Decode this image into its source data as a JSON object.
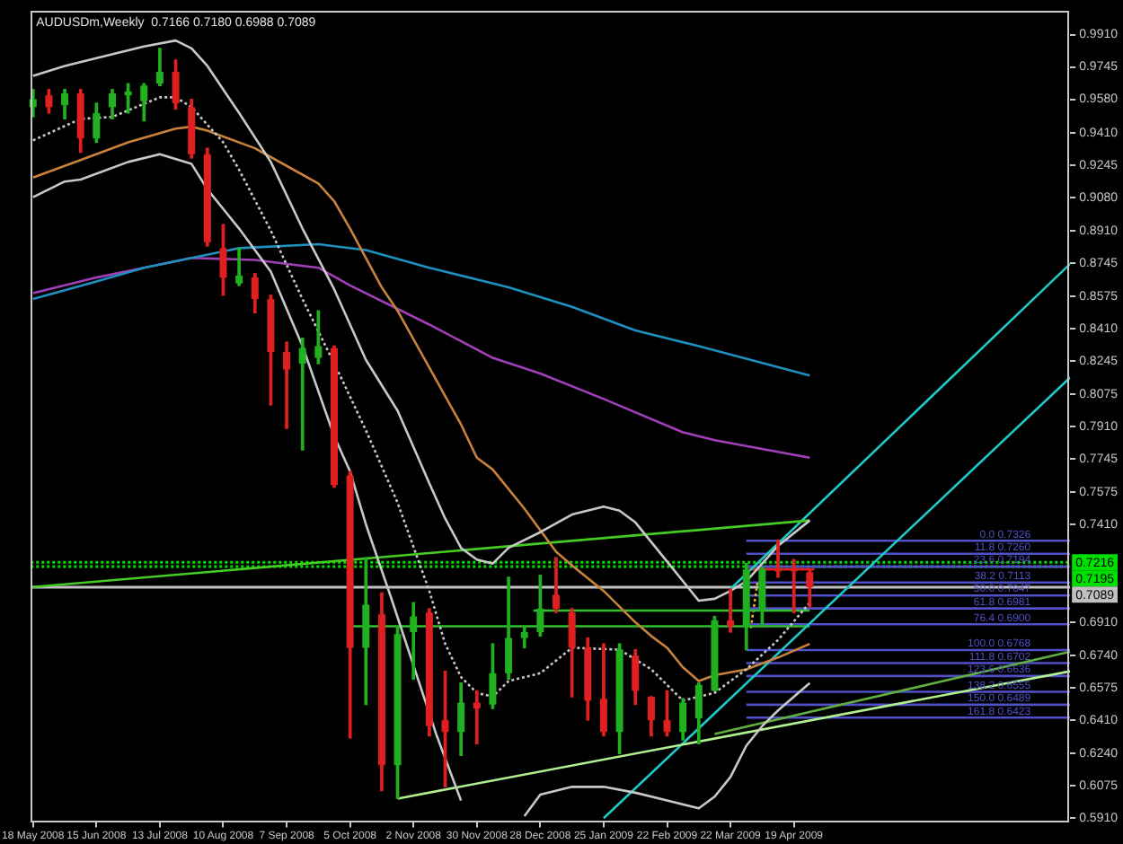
{
  "chart_data": {
    "type": "candlestick",
    "title": "AUDUSDm,Weekly  0.7166 0.7180 0.6988 0.7089",
    "x": [
      "2008-05-18",
      "2008-05-25",
      "2008-06-01",
      "2008-06-08",
      "2008-06-15",
      "2008-06-22",
      "2008-06-29",
      "2008-07-06",
      "2008-07-13",
      "2008-07-20",
      "2008-07-27",
      "2008-08-03",
      "2008-08-10",
      "2008-08-17",
      "2008-08-24",
      "2008-08-31",
      "2008-09-07",
      "2008-09-14",
      "2008-09-21",
      "2008-09-28",
      "2008-10-05",
      "2008-10-12",
      "2008-10-19",
      "2008-10-26",
      "2008-11-02",
      "2008-11-09",
      "2008-11-16",
      "2008-11-23",
      "2008-11-30",
      "2008-12-07",
      "2008-12-14",
      "2008-12-21",
      "2008-12-28",
      "2009-01-04",
      "2009-01-11",
      "2009-01-18",
      "2009-01-25",
      "2009-02-01",
      "2009-02-08",
      "2009-02-15",
      "2009-02-22",
      "2009-03-01",
      "2009-03-08",
      "2009-03-15",
      "2009-03-22",
      "2009-03-29",
      "2009-04-05",
      "2009-04-12",
      "2009-04-19",
      "2009-04-26"
    ],
    "ohlc": [
      [
        0.954,
        0.963,
        0.949,
        0.958
      ],
      [
        0.96,
        0.963,
        0.951,
        0.954
      ],
      [
        0.955,
        0.963,
        0.948,
        0.961
      ],
      [
        0.961,
        0.963,
        0.931,
        0.938
      ],
      [
        0.938,
        0.956,
        0.936,
        0.951
      ],
      [
        0.954,
        0.963,
        0.948,
        0.961
      ],
      [
        0.96,
        0.966,
        0.951,
        0.962
      ],
      [
        0.957,
        0.966,
        0.947,
        0.965
      ],
      [
        0.966,
        0.984,
        0.965,
        0.972
      ],
      [
        0.972,
        0.978,
        0.953,
        0.956
      ],
      [
        0.954,
        0.958,
        0.928,
        0.93
      ],
      [
        0.93,
        0.933,
        0.883,
        0.885
      ],
      [
        0.882,
        0.894,
        0.858,
        0.867
      ],
      [
        0.864,
        0.882,
        0.863,
        0.868
      ],
      [
        0.867,
        0.869,
        0.849,
        0.856
      ],
      [
        0.856,
        0.858,
        0.802,
        0.829
      ],
      [
        0.829,
        0.834,
        0.79,
        0.82
      ],
      [
        0.823,
        0.836,
        0.779,
        0.831
      ],
      [
        0.826,
        0.85,
        0.823,
        0.832
      ],
      [
        0.831,
        0.832,
        0.76,
        0.761
      ],
      [
        0.766,
        0.768,
        0.632,
        0.678
      ],
      [
        0.678,
        0.724,
        0.649,
        0.7
      ],
      [
        0.695,
        0.706,
        0.605,
        0.618
      ],
      [
        0.618,
        0.689,
        0.601,
        0.685
      ],
      [
        0.686,
        0.701,
        0.662,
        0.694
      ],
      [
        0.696,
        0.698,
        0.633,
        0.638
      ],
      [
        0.641,
        0.666,
        0.607,
        0.635
      ],
      [
        0.635,
        0.66,
        0.623,
        0.65
      ],
      [
        0.65,
        0.656,
        0.629,
        0.647
      ],
      [
        0.649,
        0.68,
        0.647,
        0.665
      ],
      [
        0.665,
        0.714,
        0.662,
        0.683
      ],
      [
        0.683,
        0.689,
        0.678,
        0.686
      ],
      [
        0.686,
        0.715,
        0.684,
        0.698
      ],
      [
        0.705,
        0.724,
        0.696,
        0.698
      ],
      [
        0.696,
        0.698,
        0.653,
        0.678
      ],
      [
        0.678,
        0.683,
        0.641,
        0.651
      ],
      [
        0.652,
        0.68,
        0.633,
        0.635
      ],
      [
        0.635,
        0.68,
        0.624,
        0.677
      ],
      [
        0.674,
        0.677,
        0.649,
        0.656
      ],
      [
        0.653,
        0.653,
        0.633,
        0.641
      ],
      [
        0.641,
        0.656,
        0.633,
        0.635
      ],
      [
        0.635,
        0.652,
        0.631,
        0.65
      ],
      [
        0.642,
        0.66,
        0.629,
        0.659
      ],
      [
        0.656,
        0.694,
        0.656,
        0.692
      ],
      [
        0.692,
        0.708,
        0.686,
        0.689
      ],
      [
        0.689,
        0.721,
        0.677,
        0.718
      ],
      [
        0.697,
        0.719,
        0.689,
        0.718
      ],
      [
        0.718,
        0.733,
        0.714,
        0.717
      ],
      [
        0.718,
        0.723,
        0.696,
        0.717
      ],
      [
        0.7166,
        0.718,
        0.6988,
        0.7089
      ]
    ],
    "colors": [
      "#20b020",
      "#e02020",
      "#20b020",
      "#e02020",
      "#20b020",
      "#20b020",
      "#20b020",
      "#20b020",
      "#20b020",
      "#e02020",
      "#e02020",
      "#e02020",
      "#e02020",
      "#20b020",
      "#e02020",
      "#e02020",
      "#e02020",
      "#20b020",
      "#20b020",
      "#e02020",
      "#e02020",
      "#20b020",
      "#e02020",
      "#20b020",
      "#20b020",
      "#e02020",
      "#e02020",
      "#20b020",
      "#e02020",
      "#20b020",
      "#20b020",
      "#20b020",
      "#20b020",
      "#e02020",
      "#e02020",
      "#e02020",
      "#e02020",
      "#20b020",
      "#e02020",
      "#e02020",
      "#e02020",
      "#20b020",
      "#20b020",
      "#20b020",
      "#e02020",
      "#20b020",
      "#20b020",
      "#e02020",
      "#e02020",
      "#e02020"
    ],
    "xlim": [
      "2008-05-17",
      "2009-08-19"
    ],
    "xticks": [
      {
        "value": "2008-05-18",
        "label": "18 May 2008"
      },
      {
        "value": "2008-06-15",
        "label": "15 Jun 2008"
      },
      {
        "value": "2008-07-13",
        "label": "13 Jul 2008"
      },
      {
        "value": "2008-08-10",
        "label": "10 Aug 2008"
      },
      {
        "value": "2008-09-07",
        "label": "7 Sep 2008"
      },
      {
        "value": "2008-10-05",
        "label": "5 Oct 2008"
      },
      {
        "value": "2008-11-02",
        "label": "2 Nov 2008"
      },
      {
        "value": "2008-11-30",
        "label": "30 Nov 2008"
      },
      {
        "value": "2008-12-28",
        "label": "28 Dec 2008"
      },
      {
        "value": "2009-01-25",
        "label": "25 Jan 2009"
      },
      {
        "value": "2009-02-22",
        "label": "22 Feb 2009"
      },
      {
        "value": "2009-03-22",
        "label": "22 Mar 2009"
      },
      {
        "value": "2009-04-19",
        "label": "19 Apr 2009"
      }
    ],
    "ylim": [
      0.589,
      1.003
    ],
    "yticks": [
      {
        "value": 0.991,
        "label": "0.9910"
      },
      0.9745,
      {
        "value": 0.958,
        "label": "0.9580"
      },
      {
        "value": 0.941,
        "label": "0.9410"
      },
      0.9245,
      {
        "value": 0.908,
        "label": "0.9080"
      },
      {
        "value": 0.891,
        "label": "0.8910"
      },
      0.8745,
      0.8575,
      {
        "value": 0.841,
        "label": "0.8410"
      },
      0.8245,
      0.8075,
      {
        "value": 0.791,
        "label": "0.7910"
      },
      0.7745,
      0.7575,
      {
        "value": 0.741,
        "label": "0.7410"
      },
      {
        "value": 0.691,
        "label": "0.6910"
      },
      {
        "value": 0.674,
        "label": "0.6740"
      },
      0.6575,
      {
        "value": 0.641,
        "label": "0.6410"
      },
      {
        "value": 0.624,
        "label": "0.6240"
      },
      0.6075,
      {
        "value": 0.591,
        "label": "0.5910"
      }
    ],
    "series": [
      {
        "type": "line",
        "color": "#c8c8c8",
        "line_style": "solid",
        "x": [
          "2008-05-18",
          "2008-06-01",
          "2008-06-15",
          "2008-07-06",
          "2008-07-20",
          "2008-07-27",
          "2008-08-03",
          "2008-08-17",
          "2008-08-31",
          "2008-09-14",
          "2008-09-28",
          "2008-10-12",
          "2008-10-26",
          "2008-11-09",
          "2008-11-16",
          "2008-11-23",
          "2008-11-30",
          "2008-12-07",
          "2008-12-14",
          "2008-12-28",
          "2009-01-11",
          "2009-01-25",
          "2009-02-01",
          "2009-02-08",
          "2009-02-22",
          "2009-03-08",
          "2009-03-15",
          "2009-03-22",
          "2009-03-29",
          "2009-04-12",
          "2009-04-26"
        ],
        "values": [
          0.97,
          0.975,
          0.979,
          0.985,
          0.988,
          0.984,
          0.975,
          0.951,
          0.926,
          0.892,
          0.861,
          0.825,
          0.799,
          0.762,
          0.744,
          0.729,
          0.723,
          0.721,
          0.729,
          0.737,
          0.746,
          0.75,
          0.748,
          0.742,
          0.722,
          0.702,
          0.703,
          0.707,
          0.712,
          0.73,
          0.743
        ]
      },
      {
        "type": "line",
        "color": "#c8c8c8",
        "line_style": "dotted",
        "x": [
          "2008-05-18",
          "2008-06-08",
          "2008-06-22",
          "2008-07-13",
          "2008-07-20",
          "2008-07-27",
          "2008-08-10",
          "2008-08-17",
          "2008-08-31",
          "2008-09-14",
          "2008-10-01",
          "2008-10-12",
          "2008-10-26",
          "2008-11-09",
          "2008-11-16",
          "2008-11-23",
          "2008-11-30",
          "2008-12-07",
          "2008-12-14",
          "2008-12-28",
          "2009-01-11",
          "2009-02-01",
          "2009-02-15",
          "2009-03-01",
          "2009-03-15",
          "2009-03-29",
          "2009-04-12",
          "2009-04-26"
        ],
        "values": [
          0.937,
          0.948,
          0.949,
          0.959,
          0.959,
          0.954,
          0.936,
          0.922,
          0.891,
          0.856,
          0.816,
          0.789,
          0.752,
          0.707,
          0.68,
          0.663,
          0.655,
          0.653,
          0.661,
          0.665,
          0.678,
          0.677,
          0.667,
          0.651,
          0.655,
          0.667,
          0.682,
          0.701
        ]
      },
      {
        "type": "line",
        "color": "#c8c8c8",
        "line_style": "solid",
        "x": [
          "2008-05-18",
          "2008-06-01",
          "2008-06-08",
          "2008-06-29",
          "2008-07-13",
          "2008-07-27",
          "2008-08-03",
          "2008-08-17",
          "2008-08-31",
          "2008-09-14",
          "2008-09-28",
          "2008-10-05",
          "2008-10-12",
          "2008-10-23",
          "2008-11-12",
          "2008-11-23",
          "2008-11-30",
          "2008-12-21",
          "2008-12-28",
          "2009-01-11",
          "2009-01-25",
          "2009-02-08",
          "2009-02-22",
          "2009-03-08",
          "2009-03-15",
          "2009-03-22",
          "2009-03-29",
          "2009-04-05",
          "2009-04-12",
          "2009-04-26"
        ],
        "values": [
          0.908,
          0.916,
          0.917,
          0.926,
          0.93,
          0.925,
          0.912,
          0.892,
          0.87,
          0.832,
          0.786,
          0.768,
          0.741,
          0.704,
          0.634,
          0.6,
          null,
          0.592,
          0.603,
          0.607,
          0.607,
          0.604,
          0.6,
          0.596,
          0.602,
          0.612,
          0.628,
          0.638,
          0.646,
          0.66
        ]
      },
      {
        "type": "line",
        "color": "#c8823c",
        "line_style": "solid",
        "x": [
          "2008-05-18",
          "2008-06-08",
          "2008-06-29",
          "2008-07-20",
          "2008-07-27",
          "2008-08-03",
          "2008-08-24",
          "2008-09-07",
          "2008-09-21",
          "2008-09-28",
          "2008-10-05",
          "2008-10-12",
          "2008-10-19",
          "2008-10-26",
          "2008-11-09",
          "2008-11-23",
          "2008-11-30",
          "2008-12-07",
          "2008-12-21",
          "2008-12-28",
          "2009-01-04",
          "2009-01-11",
          "2009-01-25",
          "2009-02-08",
          "2009-02-15",
          "2009-02-22",
          "2009-03-01",
          "2009-03-08",
          "2009-03-15",
          "2009-03-29",
          "2009-04-12",
          "2009-04-26"
        ],
        "values": [
          0.918,
          0.927,
          0.936,
          0.943,
          0.944,
          0.942,
          0.933,
          0.924,
          0.915,
          0.906,
          0.892,
          0.877,
          0.862,
          0.85,
          0.821,
          0.792,
          0.775,
          0.769,
          0.749,
          0.738,
          0.727,
          0.72,
          0.707,
          0.691,
          0.684,
          0.678,
          0.668,
          0.661,
          0.664,
          0.667,
          0.673,
          0.68
        ]
      },
      {
        "type": "line",
        "color": "#2090c0",
        "line_style": "solid",
        "x": [
          "2008-05-18",
          "2008-06-15",
          "2008-07-06",
          "2008-07-27",
          "2008-08-17",
          "2008-09-21",
          "2008-10-12",
          "2008-11-09",
          "2008-12-14",
          "2009-01-11",
          "2009-02-08",
          "2009-03-08",
          "2009-04-26"
        ],
        "values": [
          0.856,
          0.865,
          0.872,
          0.877,
          0.882,
          0.884,
          0.881,
          0.872,
          0.862,
          0.852,
          0.84,
          0.832,
          0.817
        ]
      },
      {
        "type": "line",
        "color": "#a040b8",
        "line_style": "solid",
        "x": [
          "2008-05-18",
          "2008-06-15",
          "2008-07-06",
          "2008-07-27",
          "2008-08-24",
          "2008-09-21",
          "2008-10-05",
          "2008-11-09",
          "2008-12-07",
          "2008-12-28",
          "2009-01-25",
          "2009-03-01",
          "2009-03-15",
          "2009-04-26"
        ],
        "values": [
          0.859,
          0.867,
          0.872,
          0.877,
          0.876,
          0.872,
          0.863,
          0.843,
          0.826,
          0.818,
          0.805,
          0.788,
          0.784,
          0.775
        ]
      },
      {
        "type": "line",
        "color": "#44cc22",
        "line_style": "solid",
        "x": [
          "2008-05-18",
          "2009-04-26"
        ],
        "values": [
          0.709,
          0.743
        ]
      },
      {
        "type": "line",
        "color": "#b0f090",
        "line_style": "solid",
        "x": [
          "2008-10-26",
          "2009-08-19"
        ],
        "values": [
          0.601,
          0.666
        ]
      },
      {
        "type": "line",
        "color": "#60b040",
        "line_style": "solid",
        "x": [
          "2009-03-15",
          "2009-08-19"
        ],
        "values": [
          0.634,
          0.676
        ]
      },
      {
        "type": "line",
        "color": "#20c8c8",
        "line_style": "solid",
        "x": [
          "2009-03-22",
          "2009-08-19"
        ],
        "values": [
          0.708,
          0.874
        ]
      },
      {
        "type": "line",
        "color": "#20c8c8",
        "line_style": "solid",
        "x": [
          "2009-01-25",
          "2009-08-19"
        ],
        "values": [
          0.591,
          0.816
        ]
      },
      {
        "type": "line",
        "color": "#30c030",
        "line_style": "solid",
        "x": [
          "2008-10-05",
          "2009-04-26"
        ],
        "values": [
          0.689,
          0.689
        ]
      },
      {
        "type": "line",
        "color": "#30c030",
        "line_style": "solid",
        "x": [
          "2008-12-25",
          "2009-04-26"
        ],
        "values": [
          0.697,
          0.697
        ]
      },
      {
        "type": "line",
        "color": "#e0b030",
        "line_style": "dotted",
        "x": [
          "2009-03-31",
          "2009-04-03"
        ],
        "values": [
          0.688,
          0.712
        ]
      },
      {
        "type": "line",
        "color": "#e02020",
        "line_style": "solid",
        "x": [
          "2009-03-30",
          "2009-04-28"
        ],
        "values": [
          0.718,
          0.718
        ]
      },
      {
        "type": "line",
        "name": "0.0 0.7326",
        "color": "#5050c8",
        "x": [
          "2009-03-29",
          "2009-08-19"
        ],
        "values": [
          0.7326,
          0.7326
        ]
      },
      {
        "type": "line",
        "name": "11.8 0.7260",
        "color": "#5050c8",
        "x": [
          "2009-03-29",
          "2009-08-19"
        ],
        "values": [
          0.726,
          0.726
        ]
      },
      {
        "type": "line",
        "name": "23.6 0.7194",
        "color": "#5050c8",
        "x": [
          "2009-03-29",
          "2009-08-19"
        ],
        "values": [
          0.7194,
          0.7194
        ]
      },
      {
        "type": "line",
        "name": "38.2 0.7113",
        "color": "#5050c8",
        "x": [
          "2009-03-29",
          "2009-08-19"
        ],
        "values": [
          0.7113,
          0.7113
        ]
      },
      {
        "type": "line",
        "name": "50.0 0.7047",
        "color": "#5050c8",
        "x": [
          "2009-03-29",
          "2009-08-19"
        ],
        "values": [
          0.7047,
          0.7047
        ]
      },
      {
        "type": "line",
        "name": "61.8 0.6981",
        "color": "#5050c8",
        "x": [
          "2009-03-29",
          "2009-08-19"
        ],
        "values": [
          0.6981,
          0.6981
        ]
      },
      {
        "type": "line",
        "name": "76.4 0.6900",
        "color": "#5050c8",
        "x": [
          "2009-03-29",
          "2009-08-19"
        ],
        "values": [
          0.69,
          0.69
        ]
      },
      {
        "type": "line",
        "name": "100.0 0.6768",
        "color": "#5050c8",
        "x": [
          "2009-03-29",
          "2009-08-19"
        ],
        "values": [
          0.6768,
          0.6768
        ]
      },
      {
        "type": "line",
        "name": "111.8 0.6702",
        "color": "#5050c8",
        "x": [
          "2009-03-29",
          "2009-08-19"
        ],
        "values": [
          0.6702,
          0.6702
        ]
      },
      {
        "type": "line",
        "name": "123.6 0.6636",
        "color": "#5050c8",
        "x": [
          "2009-03-29",
          "2009-08-19"
        ],
        "values": [
          0.6636,
          0.6636
        ]
      },
      {
        "type": "line",
        "name": "138.2 0.6555",
        "color": "#5050c8",
        "x": [
          "2009-03-29",
          "2009-08-19"
        ],
        "values": [
          0.6555,
          0.6555
        ]
      },
      {
        "type": "line",
        "name": "150.0 0.6489",
        "color": "#5050c8",
        "x": [
          "2009-03-29",
          "2009-08-19"
        ],
        "values": [
          0.6489,
          0.6489
        ]
      },
      {
        "type": "line",
        "name": "161.8 0.6423",
        "color": "#5050c8",
        "x": [
          "2009-03-29",
          "2009-08-19"
        ],
        "values": [
          0.6423,
          0.6423
        ]
      }
    ],
    "ref_lines": [
      {
        "axis": "y",
        "value": 0.7216,
        "label": "0.7216",
        "color": "#00e000",
        "line_style": "dotted"
      },
      {
        "axis": "y",
        "value": 0.7195,
        "label": "0.7195",
        "color": "#00e000",
        "line_style": "dotted"
      },
      {
        "axis": "y",
        "value": 0.7089,
        "label": "0.7089",
        "color": "#c0c0c0",
        "line_style": "solid"
      }
    ]
  }
}
